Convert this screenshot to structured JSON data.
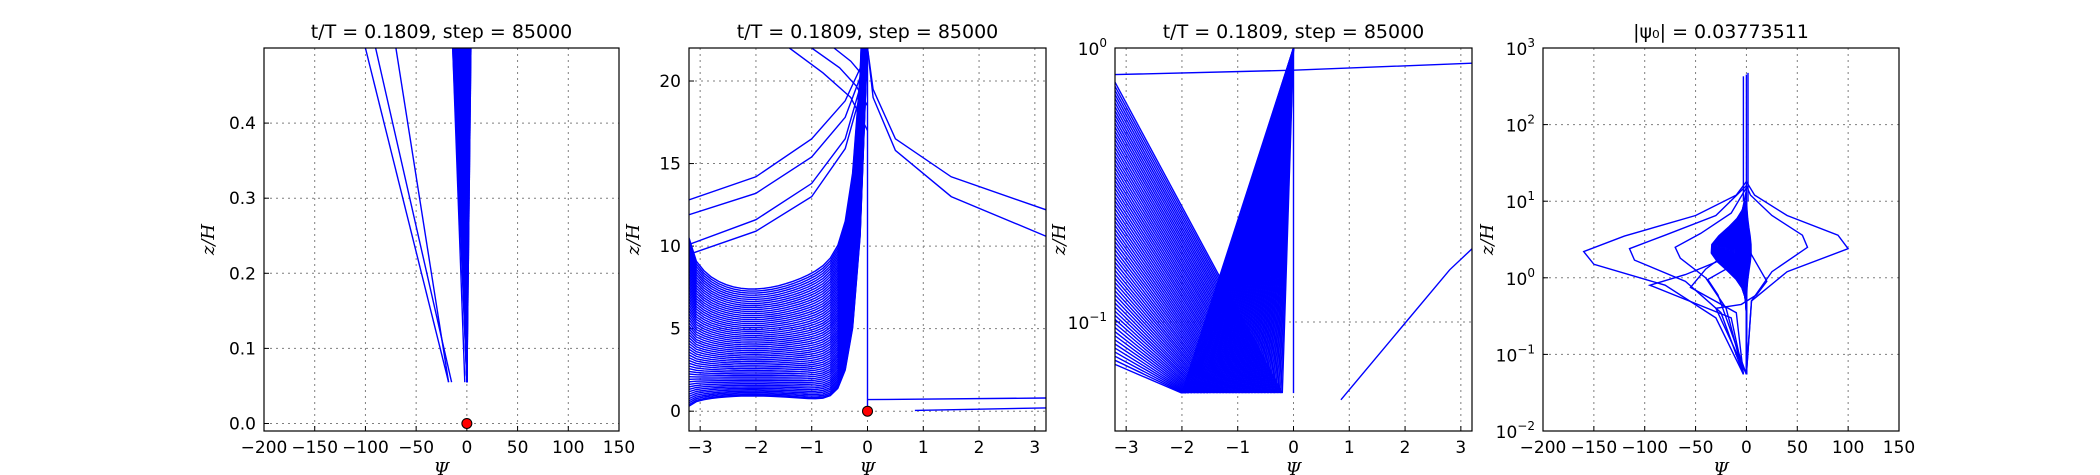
{
  "figure": {
    "background": "#ffffff",
    "line_color": "#0000ff",
    "marker_color": "#ff0000"
  },
  "chart_data": [
    {
      "type": "line",
      "title": "t/T = 0.1809, step = 85000",
      "xlabel": "Ψ",
      "ylabel": "z/H",
      "xlim": [
        -200,
        150
      ],
      "ylim": [
        -0.01,
        0.5
      ],
      "xticks": [
        -200,
        -150,
        -100,
        -50,
        0,
        50,
        100,
        150
      ],
      "yticks": [
        0.0,
        0.1,
        0.2,
        0.3,
        0.4
      ],
      "ytick_labels": [
        "0.0",
        "0.1",
        "0.2",
        "0.3",
        "0.4"
      ],
      "grid": true,
      "marker": {
        "x": 0,
        "y": 0,
        "color": "#ff0000"
      },
      "series": [
        {
          "points": [
            [
              -18,
              0.055
            ],
            [
              -70,
              0.5
            ]
          ]
        },
        {
          "points": [
            [
              -18,
              0.055
            ],
            [
              -100,
              0.5
            ]
          ]
        },
        {
          "points": [
            [
              -15,
              0.055
            ],
            [
              -90,
              0.5
            ]
          ]
        },
        {
          "points": [
            [
              -2,
              0.055
            ],
            [
              -14,
              0.5
            ]
          ]
        },
        {
          "points": [
            [
              0,
              0.055
            ],
            [
              -3,
              0.5
            ]
          ]
        },
        {
          "points": [
            [
              0,
              0.055
            ],
            [
              1,
              0.5
            ]
          ]
        },
        {
          "points": [
            [
              0,
              0.055
            ],
            [
              4,
              0.5
            ]
          ]
        }
      ],
      "fan": {
        "x0": 0,
        "y0": 0.055,
        "x_left": -14,
        "x_right": 4,
        "y_top": 0.5,
        "count": 28
      }
    },
    {
      "type": "line",
      "title": "t/T = 0.1809, step = 85000",
      "xlabel": "Ψ",
      "ylabel": "z/H",
      "xlim": [
        -3.2,
        3.2
      ],
      "ylim": [
        -1.2,
        22
      ],
      "xticks": [
        -3,
        -2,
        -1,
        0,
        1,
        2,
        3
      ],
      "yticks": [
        0,
        5,
        10,
        15,
        20
      ],
      "grid": true,
      "marker": {
        "x": 0,
        "y": 0,
        "color": "#ff0000"
      },
      "series": [
        {
          "points": [
            [
              -3.2,
              12.8
            ],
            [
              -2,
              14.2
            ],
            [
              -1,
              16.5
            ],
            [
              -0.4,
              18.8
            ],
            [
              -0.1,
              21
            ],
            [
              0,
              22
            ]
          ]
        },
        {
          "points": [
            [
              -3.2,
              11.9
            ],
            [
              -2,
              13.2
            ],
            [
              -1,
              15.4
            ],
            [
              -0.4,
              17.8
            ],
            [
              -0.1,
              20.5
            ],
            [
              0,
              22
            ]
          ]
        },
        {
          "points": [
            [
              -3.2,
              10.1
            ],
            [
              -2,
              11.6
            ],
            [
              -1,
              13.8
            ],
            [
              -0.4,
              16.5
            ],
            [
              -0.1,
              20
            ],
            [
              0,
              22
            ]
          ]
        },
        {
          "points": [
            [
              -3.2,
              9.5
            ],
            [
              -2,
              10.9
            ],
            [
              -1,
              13.0
            ],
            [
              -0.4,
              15.9
            ],
            [
              -0.1,
              19.5
            ],
            [
              0,
              22
            ]
          ]
        },
        {
          "points": [
            [
              -1.4,
              22
            ],
            [
              -0.8,
              20.5
            ],
            [
              -0.3,
              19
            ],
            [
              0,
              17
            ]
          ]
        },
        {
          "points": [
            [
              -1.0,
              22
            ],
            [
              -0.5,
              20.8
            ],
            [
              -0.2,
              19.7
            ],
            [
              0,
              18.5
            ]
          ]
        },
        {
          "points": [
            [
              -0.6,
              22
            ],
            [
              -0.3,
              21.2
            ],
            [
              0,
              20
            ]
          ]
        },
        {
          "points": [
            [
              0,
              22
            ],
            [
              0.1,
              19.5
            ],
            [
              0.5,
              16.5
            ],
            [
              1.5,
              14.2
            ],
            [
              3.2,
              12.2
            ]
          ]
        },
        {
          "points": [
            [
              0,
              22
            ],
            [
              0.1,
              19.0
            ],
            [
              0.5,
              15.8
            ],
            [
              1.5,
              13.0
            ],
            [
              3.2,
              10.6
            ]
          ]
        },
        {
          "points": [
            [
              0.85,
              0.05
            ],
            [
              3.2,
              0.2
            ]
          ]
        },
        {
          "points": [
            [
              0,
              0.7
            ],
            [
              3.2,
              0.8
            ]
          ]
        }
      ],
      "fan": {
        "x0": 0,
        "y0": 0.1,
        "x_left": -3.2,
        "y_start": 0.3,
        "y_end": 10.5,
        "count": 60,
        "x_right": 0,
        "y_top": 22
      }
    },
    {
      "type": "line",
      "title": "t/T = 0.1809, step = 85000",
      "xlabel": "Ψ",
      "ylabel": "z/H",
      "xlim": [
        -3.2,
        3.2
      ],
      "ylim": [
        0.04,
        1.0
      ],
      "yscale": "log",
      "xticks": [
        -3,
        -2,
        -1,
        0,
        1,
        2,
        3
      ],
      "ytick_positions": [
        0.1,
        1.0
      ],
      "ytick_labels_base": [
        "10",
        "10"
      ],
      "ytick_labels_exp": [
        "-1",
        "0"
      ],
      "grid": true,
      "series": [
        {
          "points": [
            [
              -3.2,
              0.8
            ],
            [
              0,
              0.83
            ],
            [
              3.2,
              0.88
            ]
          ]
        },
        {
          "points": [
            [
              0.85,
              0.052
            ],
            [
              2.8,
              0.155
            ],
            [
              3.2,
              0.185
            ]
          ]
        }
      ],
      "fan": {
        "y_bottom": 0.055,
        "x_bottom_left": -2.0,
        "x_bottom_right": -0.2,
        "x_top": 0,
        "y_top": 1.0,
        "x_left": -3.2,
        "left_y_start": 0.07,
        "left_y_end": 0.75,
        "count": 70
      }
    },
    {
      "type": "line",
      "title": "|ψ₀| = 0.03773511",
      "xlabel": "Ψ",
      "ylabel": "z/H",
      "xlim": [
        -200,
        150
      ],
      "ylim": [
        0.01,
        1000
      ],
      "yscale": "log",
      "xticks": [
        -200,
        -150,
        -100,
        -50,
        0,
        50,
        100,
        150
      ],
      "ytick_positions": [
        0.01,
        0.1,
        1,
        10,
        100,
        1000
      ],
      "ytick_labels_base": [
        "10",
        "10",
        "10",
        "10",
        "10",
        "10"
      ],
      "ytick_labels_exp": [
        "-2",
        "-1",
        "0",
        "1",
        "2",
        "3"
      ],
      "grid": true,
      "series": [
        {
          "points": [
            [
              -3,
              0.055
            ],
            [
              -30,
              0.3
            ],
            [
              -80,
              0.8
            ],
            [
              -150,
              1.5
            ],
            [
              -160,
              2.2
            ],
            [
              -120,
              3.5
            ],
            [
              -50,
              6.5
            ],
            [
              -10,
              12
            ],
            [
              0,
              18
            ]
          ]
        },
        {
          "points": [
            [
              -3,
              0.055
            ],
            [
              -25,
              0.35
            ],
            [
              -60,
              0.9
            ],
            [
              -110,
              1.7
            ],
            [
              -115,
              2.4
            ],
            [
              -80,
              3.6
            ],
            [
              -30,
              6.5
            ],
            [
              0,
              16
            ]
          ]
        },
        {
          "points": [
            [
              -3,
              0.055
            ],
            [
              -20,
              0.4
            ],
            [
              -40,
              1.0
            ],
            [
              -65,
              1.8
            ],
            [
              -70,
              2.5
            ],
            [
              -45,
              3.8
            ],
            [
              -15,
              7
            ],
            [
              0,
              15
            ]
          ]
        },
        {
          "points": [
            [
              -3,
              0.055
            ],
            [
              -15,
              0.3
            ],
            [
              -95,
              0.8
            ],
            [
              -60,
              1.1
            ],
            [
              -30,
              1.6
            ],
            [
              -10,
              3
            ],
            [
              0,
              14
            ]
          ]
        },
        {
          "points": [
            [
              -3,
              0.055
            ],
            [
              -10,
              0.35
            ],
            [
              -55,
              0.75
            ],
            [
              -40,
              1.3
            ],
            [
              -15,
              2.3
            ],
            [
              0,
              12
            ]
          ]
        },
        {
          "points": [
            [
              0,
              0.055
            ],
            [
              5,
              0.5
            ],
            [
              40,
              1.2
            ],
            [
              100,
              2.4
            ],
            [
              90,
              3.6
            ],
            [
              40,
              6.5
            ],
            [
              8,
              12
            ],
            [
              0,
              18
            ]
          ]
        },
        {
          "points": [
            [
              0,
              0.055
            ],
            [
              5,
              0.5
            ],
            [
              25,
              1.2
            ],
            [
              60,
              2.5
            ],
            [
              55,
              3.6
            ],
            [
              25,
              6.5
            ],
            [
              4,
              12
            ],
            [
              0,
              16
            ]
          ]
        },
        {
          "points": [
            [
              0,
              0.055
            ],
            [
              -30,
              0.4
            ],
            [
              -5,
              0.45
            ],
            [
              10,
              0.6
            ],
            [
              20,
              0.9
            ],
            [
              5,
              2
            ],
            [
              0,
              3
            ]
          ]
        },
        {
          "points": [
            [
              0,
              0.055
            ],
            [
              -28,
              0.6
            ],
            [
              -38,
              0.95
            ],
            [
              -20,
              1.3
            ],
            [
              -3,
              2.3
            ],
            [
              0,
              4
            ]
          ]
        }
      ],
      "fan": {
        "y_bottom": 0.055,
        "y_center": 2.4,
        "y_top": 10,
        "x_min": -45,
        "x_max": 6,
        "count": 40,
        "spike_y_top": 450
      }
    }
  ]
}
